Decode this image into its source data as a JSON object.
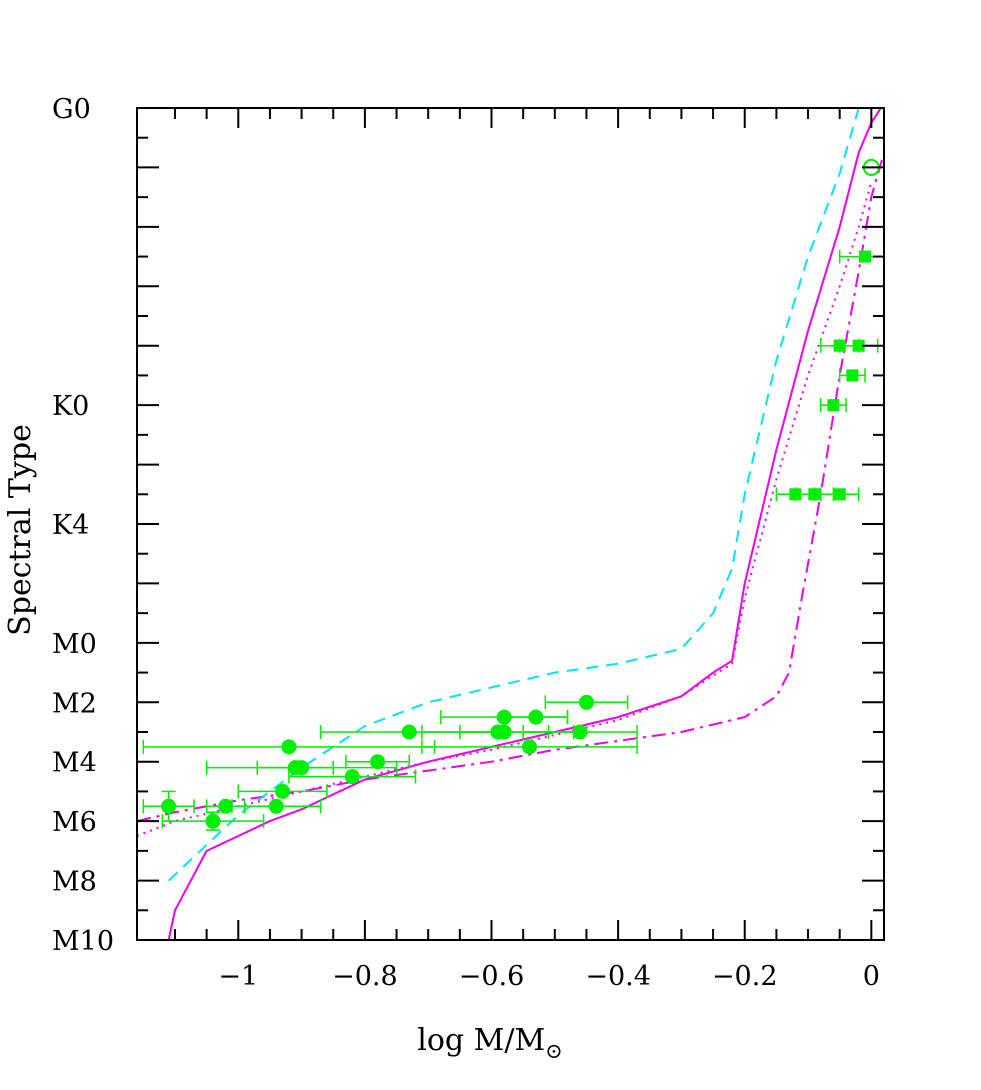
{
  "chart_data": {
    "type": "scatter",
    "title": "",
    "xlabel": "log M/M",
    "xlabel_sub": "⊙",
    "ylabel": "Spectral Type",
    "xlim": [
      -1.16,
      0.02
    ],
    "ylim": [
      -10,
      18
    ],
    "x_ticks": [
      -1,
      -0.8,
      -0.6,
      -0.4,
      -0.2,
      0
    ],
    "x_tick_labels": [
      "−1",
      "−0.8",
      "−0.6",
      "−0.4",
      "−0.2",
      "0"
    ],
    "y_ticks": [
      18,
      8,
      4,
      0,
      -2,
      -4,
      -6,
      -8,
      -10
    ],
    "y_tick_labels": [
      "G0",
      "K0",
      "K4",
      "M0",
      "M2",
      "M4",
      "M6",
      "M8",
      "M10"
    ],
    "y_axis_note": "numeric y = spectral subclass index; M0 = 0, K4 = 4, K0 = 8, G0 = 18, M2 = -2, M10 = -10",
    "grid": false,
    "legend": "none",
    "colors": {
      "points": "#00ee00",
      "model_solid": "#ee00ee",
      "model_dotted": "#ee00ee",
      "model_dashdot": "#ee00ee",
      "model_dashed": "#00e5ee",
      "axes": "#000000"
    },
    "series": [
      {
        "style": "circle-errorbar",
        "points": [
          {
            "x": -0.45,
            "y": -2.0,
            "xerr": [
              0.065,
              0.065
            ],
            "yerr": 0
          },
          {
            "x": -0.53,
            "y": -2.5,
            "xerr": [
              0.05,
              0.05
            ],
            "yerr": 0
          },
          {
            "x": -0.58,
            "y": -2.5,
            "xerr": [
              0.1,
              0.1
            ],
            "yerr": 0
          },
          {
            "x": -0.59,
            "y": -3.0,
            "xerr": [
              0.12,
              0.12
            ],
            "yerr": 0
          },
          {
            "x": -0.58,
            "y": -3.0,
            "xerr": [
              0.07,
              0.07
            ],
            "yerr": 0
          },
          {
            "x": -0.73,
            "y": -3.0,
            "xerr": [
              0.14,
              0.14
            ],
            "yerr": 0
          },
          {
            "x": -0.46,
            "y": -3.0,
            "xerr": [
              0.09,
              0.09
            ],
            "yerr": 0
          },
          {
            "x": -0.54,
            "y": -3.5,
            "xerr": [
              0.17,
              0.17
            ],
            "yerr": 0
          },
          {
            "x": -0.92,
            "y": -3.5,
            "xerr": [
              0.23,
              0.23
            ],
            "yerr": 0
          },
          {
            "x": -0.91,
            "y": -4.2,
            "xerr": [
              0.06,
              0.06
            ],
            "yerr": 0
          },
          {
            "x": -0.9,
            "y": -4.2,
            "xerr": [
              0.15,
              0.15
            ],
            "yerr": 0
          },
          {
            "x": -0.78,
            "y": -4.0,
            "xerr": [
              0.05,
              0.05
            ],
            "yerr": 0
          },
          {
            "x": -0.82,
            "y": -4.5,
            "xerr": [
              0.1,
              0.1
            ],
            "yerr": 0
          },
          {
            "x": -0.93,
            "y": -5.0,
            "xerr": [
              0.07,
              0.07
            ],
            "yerr": 0
          },
          {
            "x": -0.94,
            "y": -5.5,
            "xerr": [
              0.07,
              0.07
            ],
            "yerr": 0
          },
          {
            "x": -1.02,
            "y": -5.5,
            "xerr": [
              0.03,
              0.03
            ],
            "yerr": 0
          },
          {
            "x": -1.11,
            "y": -5.5,
            "xerr": [
              0.04,
              0.04
            ],
            "yerr": 0.5
          },
          {
            "x": -1.04,
            "y": -6.0,
            "xerr": [
              0.08,
              0.08
            ],
            "yerr": 0.3
          }
        ]
      },
      {
        "style": "square-errorbar",
        "points": [
          {
            "x": -0.01,
            "y": 13,
            "xerr": [
              0.04,
              0.04
            ]
          },
          {
            "x": -0.05,
            "y": 10,
            "xerr": [
              0.03,
              0.03
            ]
          },
          {
            "x": -0.02,
            "y": 10,
            "xerr": [
              0.03,
              0.03
            ]
          },
          {
            "x": -0.03,
            "y": 9,
            "xerr": [
              0.02,
              0.02
            ]
          },
          {
            "x": -0.06,
            "y": 8,
            "xerr": [
              0.02,
              0.02
            ]
          },
          {
            "x": -0.12,
            "y": 5,
            "xerr": [
              0.03,
              0.03
            ]
          },
          {
            "x": -0.09,
            "y": 5,
            "xerr": [
              0.03,
              0.03
            ]
          },
          {
            "x": -0.05,
            "y": 5,
            "xerr": [
              0.03,
              0.03
            ]
          }
        ]
      },
      {
        "style": "open-circle",
        "points": [
          {
            "x": 0.0,
            "y": 16
          }
        ]
      },
      {
        "style": "line-solid",
        "points": [
          [
            -1.11,
            -10
          ],
          [
            -1.1,
            -9
          ],
          [
            -1.05,
            -7
          ],
          [
            -1.0,
            -6.5
          ],
          [
            -0.95,
            -6
          ],
          [
            -0.9,
            -5.6
          ],
          [
            -0.85,
            -5.1
          ],
          [
            -0.8,
            -4.6
          ],
          [
            -0.7,
            -4.0
          ],
          [
            -0.6,
            -3.5
          ],
          [
            -0.5,
            -3.0
          ],
          [
            -0.4,
            -2.5
          ],
          [
            -0.3,
            -1.8
          ],
          [
            -0.25,
            -1.0
          ],
          [
            -0.22,
            -0.6
          ],
          [
            -0.2,
            2.0
          ],
          [
            -0.15,
            6.5
          ],
          [
            -0.1,
            10.5
          ],
          [
            -0.05,
            14.0
          ],
          [
            -0.02,
            16.5
          ],
          [
            0.0,
            17.5
          ],
          [
            0.015,
            18
          ]
        ]
      },
      {
        "style": "line-dotted",
        "points": [
          [
            -1.16,
            -6.5
          ],
          [
            -1.1,
            -6.0
          ],
          [
            -1.0,
            -5.5
          ],
          [
            -0.9,
            -5.0
          ],
          [
            -0.8,
            -4.5
          ],
          [
            -0.7,
            -4.0
          ],
          [
            -0.6,
            -3.6
          ],
          [
            -0.5,
            -3.1
          ],
          [
            -0.4,
            -2.6
          ],
          [
            -0.3,
            -1.8
          ],
          [
            -0.25,
            -1.1
          ],
          [
            -0.22,
            -0.7
          ],
          [
            -0.2,
            1.5
          ],
          [
            -0.15,
            5.5
          ],
          [
            -0.1,
            9.0
          ],
          [
            -0.05,
            12.0
          ],
          [
            -0.02,
            14.0
          ],
          [
            0.0,
            15.5
          ]
        ]
      },
      {
        "style": "line-dashdot",
        "points": [
          [
            -1.16,
            -6.0
          ],
          [
            -1.1,
            -5.7
          ],
          [
            -1.0,
            -5.3
          ],
          [
            -0.9,
            -5.0
          ],
          [
            -0.8,
            -4.6
          ],
          [
            -0.7,
            -4.3
          ],
          [
            -0.6,
            -4.0
          ],
          [
            -0.5,
            -3.6
          ],
          [
            -0.4,
            -3.3
          ],
          [
            -0.3,
            -3.0
          ],
          [
            -0.2,
            -2.5
          ],
          [
            -0.15,
            -1.8
          ],
          [
            -0.13,
            -1.0
          ],
          [
            -0.11,
            1.5
          ],
          [
            -0.08,
            5.0
          ],
          [
            -0.05,
            9.0
          ],
          [
            -0.02,
            12.5
          ],
          [
            0.0,
            15.0
          ],
          [
            0.02,
            16.5
          ]
        ]
      },
      {
        "style": "line-dashed",
        "points": [
          [
            -1.11,
            -8.0
          ],
          [
            -1.05,
            -6.8
          ],
          [
            -1.0,
            -5.8
          ],
          [
            -0.95,
            -5.0
          ],
          [
            -0.9,
            -4.2
          ],
          [
            -0.85,
            -3.5
          ],
          [
            -0.8,
            -2.8
          ],
          [
            -0.7,
            -2.0
          ],
          [
            -0.6,
            -1.5
          ],
          [
            -0.5,
            -1.0
          ],
          [
            -0.4,
            -0.7
          ],
          [
            -0.3,
            -0.2
          ],
          [
            -0.25,
            1.0
          ],
          [
            -0.22,
            2.5
          ],
          [
            -0.2,
            5.0
          ],
          [
            -0.15,
            9.5
          ],
          [
            -0.1,
            13.0
          ],
          [
            -0.05,
            15.8
          ],
          [
            -0.02,
            18.0
          ]
        ]
      }
    ]
  }
}
